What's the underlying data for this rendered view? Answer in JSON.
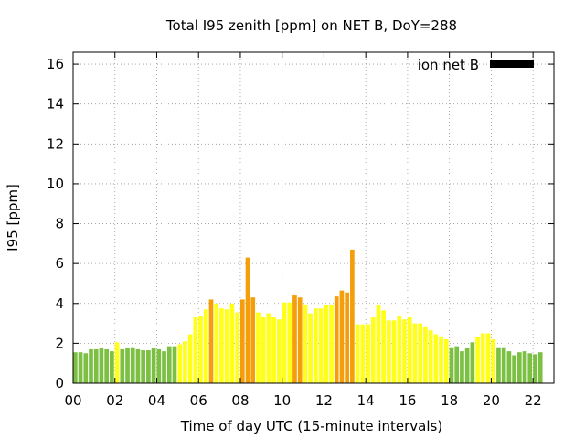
{
  "chart_data": {
    "type": "bar",
    "title": "Total I95 zenith [ppm] on NET B, DoY=288",
    "xlabel": "Time of day UTC (15-minute intervals)",
    "ylabel": "I95 [ppm]",
    "legend": {
      "label": "ion net B",
      "color": "#000000",
      "placement": "top-right"
    },
    "grid": true,
    "xlim": [
      0,
      23
    ],
    "ylim": [
      0,
      16.6
    ],
    "xticks": [
      "00",
      "02",
      "04",
      "06",
      "08",
      "10",
      "12",
      "14",
      "16",
      "18",
      "20",
      "22"
    ],
    "yticks": [
      "0",
      "2",
      "4",
      "6",
      "8",
      "10",
      "12",
      "14",
      "16"
    ],
    "category_colors": {
      "g": "#7bc043",
      "y": "#ffff1a",
      "o": "#f59e0b"
    },
    "values": [
      1.55,
      1.55,
      1.5,
      1.7,
      1.7,
      1.75,
      1.7,
      1.6,
      2.05,
      1.7,
      1.75,
      1.8,
      1.7,
      1.65,
      1.65,
      1.75,
      1.7,
      1.6,
      1.85,
      1.85,
      1.95,
      2.1,
      2.45,
      3.3,
      3.35,
      3.7,
      4.2,
      4.0,
      3.75,
      3.7,
      4.0,
      3.55,
      4.2,
      6.3,
      4.3,
      3.55,
      3.3,
      3.5,
      3.3,
      3.2,
      4.05,
      4.05,
      4.4,
      4.3,
      3.95,
      3.5,
      3.75,
      3.75,
      3.9,
      3.95,
      4.35,
      4.65,
      4.55,
      6.7,
      2.95,
      2.95,
      2.95,
      3.3,
      3.9,
      3.65,
      3.15,
      3.15,
      3.35,
      3.2,
      3.3,
      3.0,
      3.0,
      2.85,
      2.65,
      2.45,
      2.35,
      2.2,
      1.8,
      1.85,
      1.6,
      1.75,
      2.05,
      2.3,
      2.5,
      2.5,
      2.2,
      1.8,
      1.8,
      1.6,
      1.4,
      1.55,
      1.6,
      1.5,
      1.45,
      1.55
    ],
    "colors": [
      "g",
      "g",
      "g",
      "g",
      "g",
      "g",
      "g",
      "g",
      "y",
      "g",
      "g",
      "g",
      "g",
      "g",
      "g",
      "g",
      "g",
      "g",
      "g",
      "g",
      "y",
      "y",
      "y",
      "y",
      "y",
      "y",
      "o",
      "y",
      "y",
      "y",
      "y",
      "y",
      "o",
      "o",
      "o",
      "y",
      "y",
      "y",
      "y",
      "y",
      "y",
      "y",
      "o",
      "o",
      "y",
      "y",
      "y",
      "y",
      "y",
      "y",
      "o",
      "o",
      "o",
      "o",
      "y",
      "y",
      "y",
      "y",
      "y",
      "y",
      "y",
      "y",
      "y",
      "y",
      "y",
      "y",
      "y",
      "y",
      "y",
      "y",
      "y",
      "y",
      "g",
      "g",
      "g",
      "g",
      "g",
      "y",
      "y",
      "y",
      "y",
      "g",
      "g",
      "g",
      "g",
      "g",
      "g",
      "g",
      "g",
      "g"
    ]
  }
}
